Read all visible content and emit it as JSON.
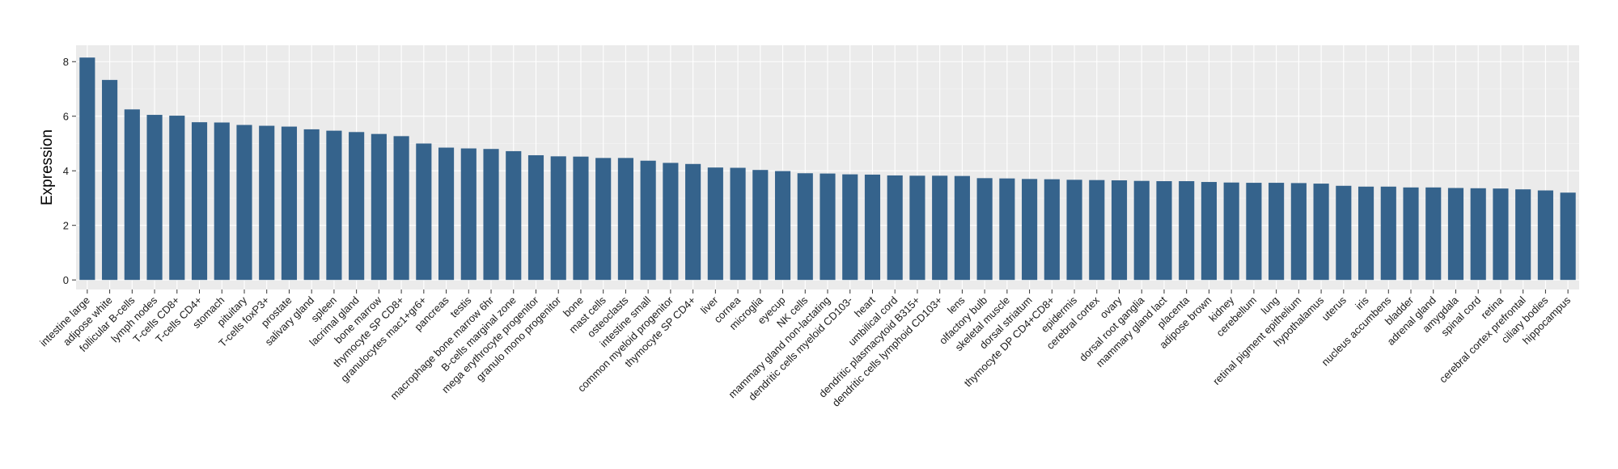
{
  "chart_data": {
    "type": "bar",
    "xlabel": "",
    "ylabel": "Expression",
    "ylim": [
      -0.35,
      8.6
    ],
    "yticks": [
      0,
      2,
      4,
      6,
      8
    ],
    "grid": true,
    "bar_color": "#35638c",
    "panel_color": "#ebebeb",
    "categories": [
      "intestine large",
      "adipose white",
      "follicular B-cells",
      "lymph nodes",
      "T-cells CD8+",
      "T-cells CD4+",
      "stomach",
      "pituitary",
      "T-cells foxP3+",
      "prostate",
      "salivary gland",
      "spleen",
      "lacrimal gland",
      "bone marrow",
      "thymocyte SP CD8+",
      "granulocytes mac1+gr6+",
      "pancreas",
      "testis",
      "macrophage bone marrow 6hr",
      "B-cells marginal zone",
      "mega erythrocyte progenitor",
      "granulo mono progenitor",
      "bone",
      "mast cells",
      "osteoclasts",
      "intestine small",
      "common myeloid progenitor",
      "thymocyte SP CD4+",
      "liver",
      "cornea",
      "microglia",
      "eyecup",
      "NK cells",
      "mammary gland non-lactating",
      "dendritic cells myeloid CD103-",
      "heart",
      "umbilical cord",
      "dendritic plasmacytoid B315+",
      "dendritic cells lymphoid CD103+",
      "lens",
      "olfactory bulb",
      "skeletal muscle",
      "dorsal striatum",
      "thymocyte DP CD4+CD8+",
      "epidermis",
      "cerebral cortex",
      "ovary",
      "dorsal root ganglia",
      "mammary gland lact",
      "placenta",
      "adipose brown",
      "kidney",
      "cerebellum",
      "lung",
      "retinal pigment epithelium",
      "hypothalamus",
      "uterus",
      "iris",
      "nucleus accumbens",
      "bladder",
      "adrenal gland",
      "amygdala",
      "spinal cord",
      "retina",
      "cerebral cortex prefrontal",
      "ciliary bodies",
      "hippocampus"
    ],
    "values": [
      8.15,
      7.33,
      6.25,
      6.05,
      6.02,
      5.78,
      5.77,
      5.68,
      5.65,
      5.62,
      5.52,
      5.47,
      5.42,
      5.35,
      5.27,
      5.0,
      4.85,
      4.82,
      4.8,
      4.72,
      4.57,
      4.53,
      4.52,
      4.47,
      4.47,
      4.37,
      4.29,
      4.25,
      4.12,
      4.11,
      4.03,
      3.99,
      3.91,
      3.9,
      3.87,
      3.86,
      3.83,
      3.82,
      3.82,
      3.81,
      3.73,
      3.72,
      3.7,
      3.69,
      3.67,
      3.66,
      3.65,
      3.63,
      3.62,
      3.62,
      3.59,
      3.57,
      3.56,
      3.56,
      3.55,
      3.53,
      3.45,
      3.42,
      3.42,
      3.39,
      3.39,
      3.37,
      3.36,
      3.35,
      3.32,
      3.28,
      3.2
    ]
  }
}
